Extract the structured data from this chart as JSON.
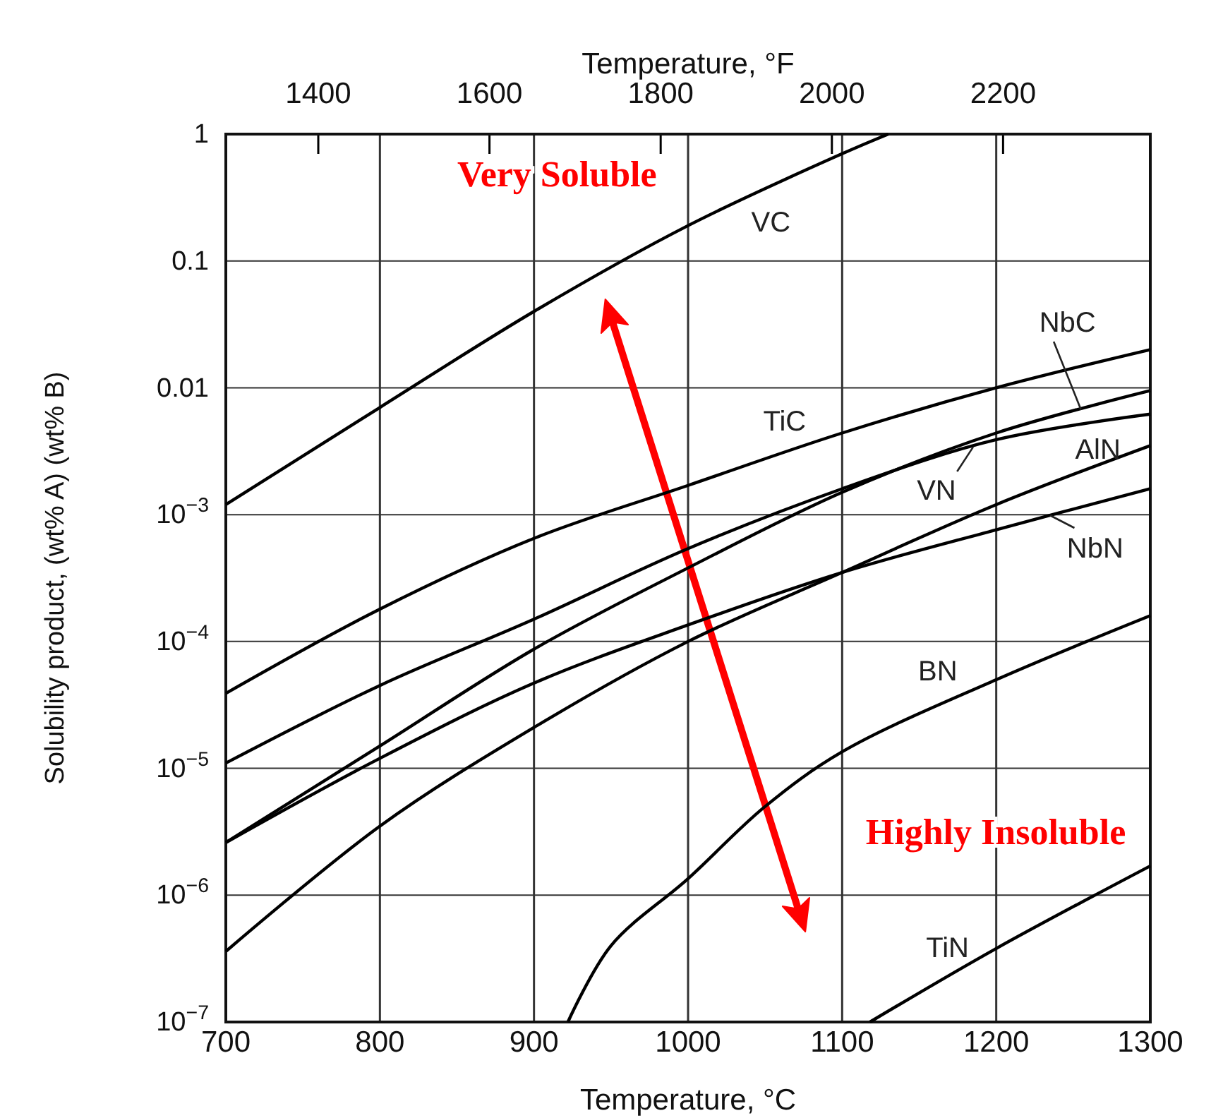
{
  "chart_data": {
    "type": "line",
    "xlabel": "Temperature, °C",
    "ylabel": "Solubility product, (wt% A) (wt% B)",
    "x2label": "Temperature, °F",
    "log": "y",
    "grid": true,
    "marker": "none",
    "line_style": "solid",
    "xlim": [
      700,
      1300
    ],
    "xticks": [
      700,
      800,
      900,
      1000,
      1100,
      1200,
      1300
    ],
    "x2lim": [
      1292,
      2372
    ],
    "x2ticks": [
      1400,
      1600,
      1800,
      2000,
      2200
    ],
    "ylim": [
      1e-07,
      1
    ],
    "yticks": [
      {
        "value": 1e-07,
        "label": "10$^{−7}$"
      },
      {
        "value": 1e-06,
        "label": "10$^{−6}$"
      },
      {
        "value": 1e-05,
        "label": "10$^{−5}$"
      },
      {
        "value": 0.0001,
        "label": "10$^{−4}$"
      },
      {
        "value": 0.001,
        "label": "10$^{−3}$"
      },
      0.01,
      0.1,
      1
    ],
    "series": [
      {
        "name": "VC",
        "color": "#000000",
        "x": [
          700,
          800,
          900,
          1000,
          1100,
          1130
        ],
        "values": [
          0.0012,
          0.007,
          0.04,
          0.19,
          0.7,
          1
        ]
      },
      {
        "name": "TiC",
        "color": "#000000",
        "x": [
          700,
          800,
          900,
          1000,
          1100,
          1200,
          1300
        ],
        "values": [
          3.9e-05,
          0.00018,
          0.00065,
          0.0017,
          0.0044,
          0.01,
          0.02
        ]
      },
      {
        "name": "NbC",
        "color": "#000000",
        "x": [
          700,
          800,
          900,
          1000,
          1100,
          1200,
          1300
        ],
        "values": [
          2.6e-06,
          1.5e-05,
          8.7e-05,
          0.00038,
          0.0015,
          0.0044,
          0.0095
        ]
      },
      {
        "name": "VN",
        "color": "#000000",
        "x": [
          700,
          800,
          900,
          1000,
          1100,
          1200,
          1300
        ],
        "values": [
          1.1e-05,
          4.5e-05,
          0.00015,
          0.00054,
          0.0016,
          0.0039,
          0.0062
        ]
      },
      {
        "name": "NbN",
        "color": "#000000",
        "x": [
          700,
          800,
          900,
          1000,
          1100,
          1200,
          1300
        ],
        "values": [
          2.6e-06,
          1.2e-05,
          4.7e-05,
          0.000135,
          0.00035,
          0.00076,
          0.0016
        ]
      },
      {
        "name": "AlN",
        "color": "#000000",
        "x": [
          700,
          800,
          900,
          1000,
          1100,
          1200,
          1300
        ],
        "values": [
          3.6e-07,
          3.5e-06,
          2.1e-05,
          0.0001,
          0.00035,
          0.0012,
          0.0035
        ]
      },
      {
        "name": "BN",
        "color": "#000000",
        "x": [
          922,
          950,
          1000,
          1050,
          1100,
          1200,
          1300
        ],
        "values": [
          1e-07,
          4e-07,
          1.35e-06,
          5e-06,
          1.35e-05,
          5e-05,
          0.00016
        ]
      },
      {
        "name": "TiN",
        "color": "#000000",
        "x": [
          1118,
          1200,
          1300
        ],
        "values": [
          1e-07,
          3.8e-07,
          1.7e-06
        ]
      }
    ],
    "annotations": [
      "Very Soluble",
      "Highly Insoluble"
    ]
  }
}
